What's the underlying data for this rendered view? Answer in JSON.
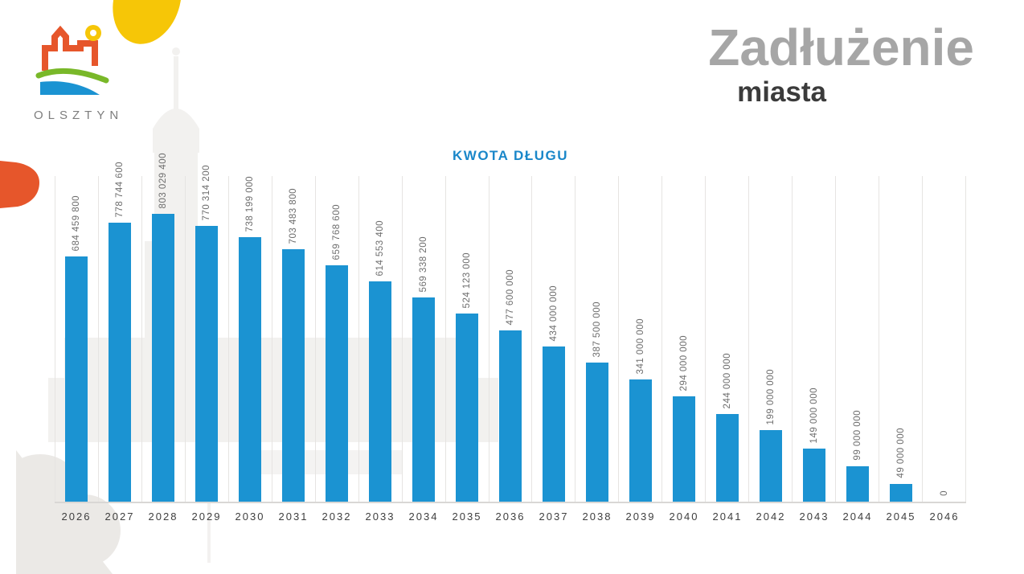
{
  "logo": {
    "city": "OLSZTYN",
    "colors": {
      "orange": "#e6562b",
      "yellow": "#f6c607",
      "green": "#79b829",
      "blue": "#1b93d2"
    }
  },
  "header": {
    "title": "Zadłużenie",
    "subtitle": "miasta"
  },
  "decor": {
    "blob_yellow_color": "#f6c607",
    "blob_orange_color": "#e6562b"
  },
  "chart_data": {
    "type": "bar",
    "title": "KWOTA DŁUGU",
    "title_color": "#1a87c9",
    "bar_color": "#1b93d2",
    "categories": [
      "2026",
      "2027",
      "2028",
      "2029",
      "2030",
      "2031",
      "2032",
      "2033",
      "2034",
      "2035",
      "2036",
      "2037",
      "2038",
      "2039",
      "2040",
      "2041",
      "2042",
      "2043",
      "2044",
      "2045",
      "2046"
    ],
    "values": [
      684459800,
      778744600,
      803029400,
      770314200,
      738199000,
      703483800,
      659768600,
      614553400,
      569338200,
      524123000,
      477600000,
      434000000,
      387500000,
      341000000,
      294000000,
      244000000,
      199000000,
      149000000,
      99000000,
      49000000,
      0
    ],
    "value_labels": [
      "684 459 800",
      "778 744 600",
      "803 029 400",
      "770 314 200",
      "738 199 000",
      "703 483 800",
      "659 768 600",
      "614 553 400",
      "569 338 200",
      "524 123 000",
      "477 600 000",
      "434 000 000",
      "387 500 000",
      "341 000 000",
      "294 000 000",
      "244 000 000",
      "199 000 000",
      "149 000 000",
      "99 000 000",
      "49 000 000",
      "0"
    ],
    "xlabel": "",
    "ylabel": "",
    "ylim": [
      0,
      803029400
    ],
    "grid": "vertical-separators-only",
    "legend": "none",
    "value_label_rotation": -90
  }
}
